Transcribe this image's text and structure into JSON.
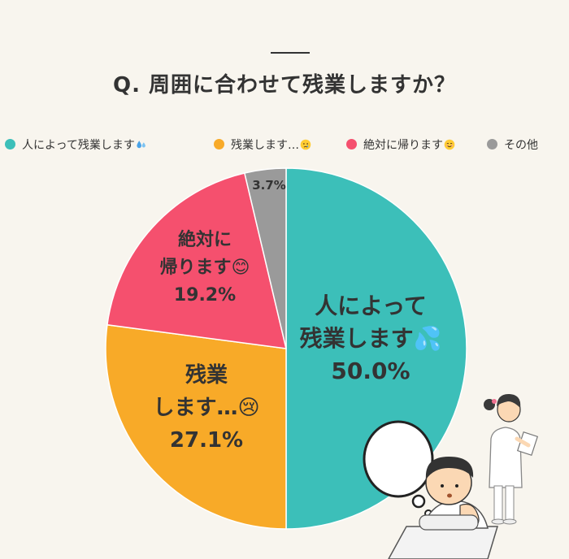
{
  "chart_data": {
    "type": "pie",
    "title": "Q. 周囲に合わせて残業しますか？",
    "slices": [
      {
        "label": "人によって残業します💦",
        "value": 50.0,
        "value_label": "50.0%",
        "color": "#3cbfb9",
        "label_lines": [
          "人によって",
          "残業します💦"
        ]
      },
      {
        "label": "残業します…😢",
        "value": 27.1,
        "value_label": "27.1%",
        "color": "#f8aa28",
        "label_lines": [
          "残業",
          "します…😢"
        ]
      },
      {
        "label": "絶対に帰ります😊",
        "value": 19.2,
        "value_label": "19.2%",
        "color": "#f5506e",
        "label_lines": [
          "絶対に",
          "帰ります😊"
        ]
      },
      {
        "label": "その他",
        "value": 3.7,
        "value_label": "3.7%",
        "color": "#9a9a9a",
        "label_lines": []
      }
    ],
    "legend_position": "top"
  },
  "legend": {
    "items": [
      {
        "text": "人によって残業します",
        "emoji": "sweat-drops-icon",
        "color": "#3cbfb9"
      },
      {
        "text": "残業します…",
        "emoji": "crying-face-icon",
        "color": "#f8aa28"
      },
      {
        "text": "絶対に帰ります",
        "emoji": "smiling-face-icon",
        "color": "#f5506e"
      },
      {
        "text": "その他",
        "emoji": "",
        "color": "#9a9a9a"
      }
    ]
  }
}
